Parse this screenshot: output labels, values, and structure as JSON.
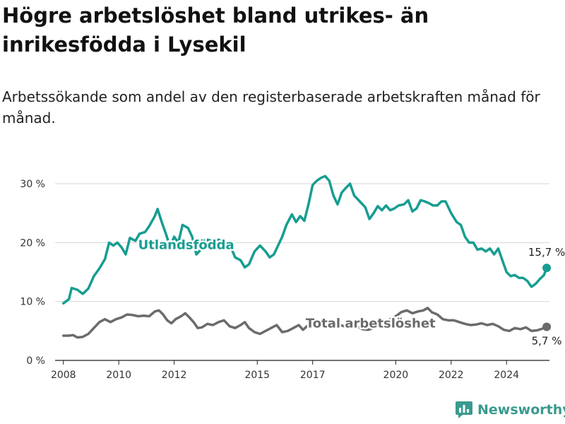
{
  "title": "Högre arbetslöshet bland utrikes- än inrikesfödda i Lysekil",
  "subtitle": "Arbetssökande som andel av den registerbaserade arbetskraften månad för månad.",
  "brand": {
    "name": "Newsworthy",
    "icon": "newsworthy-chart-icon"
  },
  "colors": {
    "foreign": "#179d91",
    "total": "#6b6b6b",
    "grid": "#d6d6d6",
    "brand": "#3a9a8e"
  },
  "chart_data": {
    "type": "line",
    "xlabel": "",
    "ylabel": "",
    "xlim": [
      2007.7,
      2025.55
    ],
    "ylim": [
      0,
      31.5
    ],
    "y_ticks": [
      0,
      10,
      20,
      30
    ],
    "y_tick_labels": [
      "0 %",
      "10 %",
      "20 %",
      "30 %"
    ],
    "x_ticks": [
      2008,
      2010,
      2012,
      2015,
      2017,
      2020,
      2022,
      2024
    ],
    "x_tick_labels": [
      "2008",
      "2010",
      "2012",
      "2015",
      "2017",
      "2020",
      "2022",
      "2024"
    ],
    "grid": true,
    "legend": "inline labels on lines",
    "series": [
      {
        "name": "Utlandsfödda",
        "label_at": [
          2010.7,
          18.9
        ],
        "end_label": "15,7 %",
        "points": [
          [
            2008.0,
            9.7
          ],
          [
            2008.2,
            10.4
          ],
          [
            2008.3,
            12.3
          ],
          [
            2008.5,
            12.0
          ],
          [
            2008.7,
            11.3
          ],
          [
            2008.9,
            12.2
          ],
          [
            2009.1,
            14.3
          ],
          [
            2009.3,
            15.6
          ],
          [
            2009.5,
            17.2
          ],
          [
            2009.65,
            20.0
          ],
          [
            2009.8,
            19.5
          ],
          [
            2009.95,
            20.0
          ],
          [
            2010.1,
            19.2
          ],
          [
            2010.25,
            18.0
          ],
          [
            2010.4,
            20.8
          ],
          [
            2010.6,
            20.3
          ],
          [
            2010.75,
            21.5
          ],
          [
            2010.95,
            21.8
          ],
          [
            2011.1,
            22.8
          ],
          [
            2011.3,
            24.5
          ],
          [
            2011.4,
            25.7
          ],
          [
            2011.55,
            23.5
          ],
          [
            2011.7,
            21.5
          ],
          [
            2011.85,
            19.3
          ],
          [
            2012.0,
            21.0
          ],
          [
            2012.15,
            20.0
          ],
          [
            2012.3,
            23.0
          ],
          [
            2012.5,
            22.5
          ],
          [
            2012.65,
            21.0
          ],
          [
            2012.8,
            18.0
          ],
          [
            2013.0,
            19.0
          ],
          [
            2013.2,
            20.5
          ],
          [
            2013.4,
            20.2
          ],
          [
            2013.6,
            20.5
          ],
          [
            2013.8,
            20.0
          ],
          [
            2014.0,
            19.8
          ],
          [
            2014.2,
            17.5
          ],
          [
            2014.4,
            17.0
          ],
          [
            2014.55,
            15.8
          ],
          [
            2014.7,
            16.3
          ],
          [
            2014.9,
            18.5
          ],
          [
            2015.1,
            19.5
          ],
          [
            2015.3,
            18.5
          ],
          [
            2015.45,
            17.5
          ],
          [
            2015.6,
            18.0
          ],
          [
            2015.75,
            19.5
          ],
          [
            2015.9,
            21.0
          ],
          [
            2016.05,
            23.0
          ],
          [
            2016.25,
            24.8
          ],
          [
            2016.4,
            23.5
          ],
          [
            2016.55,
            24.5
          ],
          [
            2016.7,
            23.7
          ],
          [
            2016.85,
            26.5
          ],
          [
            2017.0,
            29.8
          ],
          [
            2017.15,
            30.5
          ],
          [
            2017.3,
            31.0
          ],
          [
            2017.45,
            31.3
          ],
          [
            2017.6,
            30.5
          ],
          [
            2017.75,
            28.0
          ],
          [
            2017.9,
            26.5
          ],
          [
            2018.05,
            28.5
          ],
          [
            2018.2,
            29.3
          ],
          [
            2018.35,
            30.0
          ],
          [
            2018.5,
            28.0
          ],
          [
            2018.7,
            27.0
          ],
          [
            2018.9,
            26.0
          ],
          [
            2019.05,
            24.0
          ],
          [
            2019.2,
            25.0
          ],
          [
            2019.35,
            26.2
          ],
          [
            2019.5,
            25.5
          ],
          [
            2019.65,
            26.3
          ],
          [
            2019.8,
            25.5
          ],
          [
            2019.95,
            25.8
          ],
          [
            2020.1,
            26.3
          ],
          [
            2020.3,
            26.5
          ],
          [
            2020.45,
            27.2
          ],
          [
            2020.6,
            25.3
          ],
          [
            2020.75,
            25.8
          ],
          [
            2020.9,
            27.2
          ],
          [
            2021.05,
            27.0
          ],
          [
            2021.2,
            26.7
          ],
          [
            2021.35,
            26.3
          ],
          [
            2021.5,
            26.3
          ],
          [
            2021.65,
            27.0
          ],
          [
            2021.8,
            27.0
          ],
          [
            2022.0,
            25.0
          ],
          [
            2022.2,
            23.5
          ],
          [
            2022.35,
            23.0
          ],
          [
            2022.5,
            21.0
          ],
          [
            2022.65,
            20.0
          ],
          [
            2022.8,
            20.0
          ],
          [
            2022.95,
            18.8
          ],
          [
            2023.1,
            19.0
          ],
          [
            2023.25,
            18.5
          ],
          [
            2023.4,
            19.0
          ],
          [
            2023.55,
            18.0
          ],
          [
            2023.7,
            19.0
          ],
          [
            2023.85,
            17.0
          ],
          [
            2024.0,
            15.0
          ],
          [
            2024.15,
            14.3
          ],
          [
            2024.3,
            14.5
          ],
          [
            2024.45,
            14.0
          ],
          [
            2024.6,
            14.0
          ],
          [
            2024.75,
            13.5
          ],
          [
            2024.9,
            12.5
          ],
          [
            2025.05,
            13.0
          ],
          [
            2025.2,
            13.8
          ],
          [
            2025.35,
            14.5
          ],
          [
            2025.45,
            15.7
          ]
        ]
      },
      {
        "name": "Total arbetslöshet",
        "label_at": [
          2016.75,
          5.6
        ],
        "end_label": "5,7 %",
        "points": [
          [
            2008.0,
            4.2
          ],
          [
            2008.2,
            4.2
          ],
          [
            2008.35,
            4.3
          ],
          [
            2008.5,
            3.9
          ],
          [
            2008.7,
            4.0
          ],
          [
            2008.9,
            4.5
          ],
          [
            2009.1,
            5.5
          ],
          [
            2009.3,
            6.5
          ],
          [
            2009.5,
            7.0
          ],
          [
            2009.7,
            6.5
          ],
          [
            2009.9,
            7.0
          ],
          [
            2010.1,
            7.3
          ],
          [
            2010.3,
            7.8
          ],
          [
            2010.5,
            7.7
          ],
          [
            2010.7,
            7.5
          ],
          [
            2010.9,
            7.6
          ],
          [
            2011.1,
            7.5
          ],
          [
            2011.3,
            8.3
          ],
          [
            2011.45,
            8.5
          ],
          [
            2011.6,
            7.8
          ],
          [
            2011.75,
            6.8
          ],
          [
            2011.9,
            6.3
          ],
          [
            2012.05,
            7.0
          ],
          [
            2012.25,
            7.5
          ],
          [
            2012.4,
            8.0
          ],
          [
            2012.55,
            7.3
          ],
          [
            2012.7,
            6.5
          ],
          [
            2012.85,
            5.5
          ],
          [
            2013.0,
            5.6
          ],
          [
            2013.2,
            6.2
          ],
          [
            2013.4,
            6.0
          ],
          [
            2013.6,
            6.5
          ],
          [
            2013.8,
            6.8
          ],
          [
            2014.0,
            5.8
          ],
          [
            2014.2,
            5.5
          ],
          [
            2014.4,
            6.0
          ],
          [
            2014.55,
            6.5
          ],
          [
            2014.7,
            5.5
          ],
          [
            2014.9,
            4.8
          ],
          [
            2015.1,
            4.5
          ],
          [
            2015.3,
            5.0
          ],
          [
            2015.5,
            5.5
          ],
          [
            2015.7,
            6.0
          ],
          [
            2015.9,
            4.8
          ],
          [
            2016.1,
            5.0
          ],
          [
            2016.3,
            5.5
          ],
          [
            2016.5,
            6.0
          ],
          [
            2016.65,
            5.2
          ],
          [
            2016.85,
            6.0
          ],
          [
            2017.0,
            6.5
          ],
          [
            2017.2,
            6.8
          ],
          [
            2017.4,
            6.5
          ],
          [
            2017.6,
            6.2
          ],
          [
            2017.8,
            5.8
          ],
          [
            2018.0,
            6.0
          ],
          [
            2018.2,
            5.7
          ],
          [
            2018.4,
            5.5
          ],
          [
            2018.6,
            5.8
          ],
          [
            2018.8,
            5.3
          ],
          [
            2019.0,
            5.2
          ],
          [
            2019.2,
            5.5
          ],
          [
            2019.4,
            6.0
          ],
          [
            2019.6,
            6.3
          ],
          [
            2019.8,
            7.0
          ],
          [
            2020.0,
            7.5
          ],
          [
            2020.2,
            8.2
          ],
          [
            2020.4,
            8.5
          ],
          [
            2020.6,
            8.0
          ],
          [
            2020.8,
            8.3
          ],
          [
            2021.0,
            8.5
          ],
          [
            2021.15,
            8.9
          ],
          [
            2021.3,
            8.2
          ],
          [
            2021.5,
            7.8
          ],
          [
            2021.7,
            7.0
          ],
          [
            2021.9,
            6.8
          ],
          [
            2022.1,
            6.8
          ],
          [
            2022.3,
            6.5
          ],
          [
            2022.5,
            6.2
          ],
          [
            2022.7,
            6.0
          ],
          [
            2022.9,
            6.1
          ],
          [
            2023.1,
            6.3
          ],
          [
            2023.3,
            6.0
          ],
          [
            2023.5,
            6.2
          ],
          [
            2023.7,
            5.8
          ],
          [
            2023.9,
            5.2
          ],
          [
            2024.1,
            5.0
          ],
          [
            2024.3,
            5.5
          ],
          [
            2024.5,
            5.3
          ],
          [
            2024.7,
            5.6
          ],
          [
            2024.9,
            5.0
          ],
          [
            2025.1,
            5.1
          ],
          [
            2025.3,
            5.4
          ],
          [
            2025.45,
            5.7
          ]
        ]
      }
    ]
  }
}
